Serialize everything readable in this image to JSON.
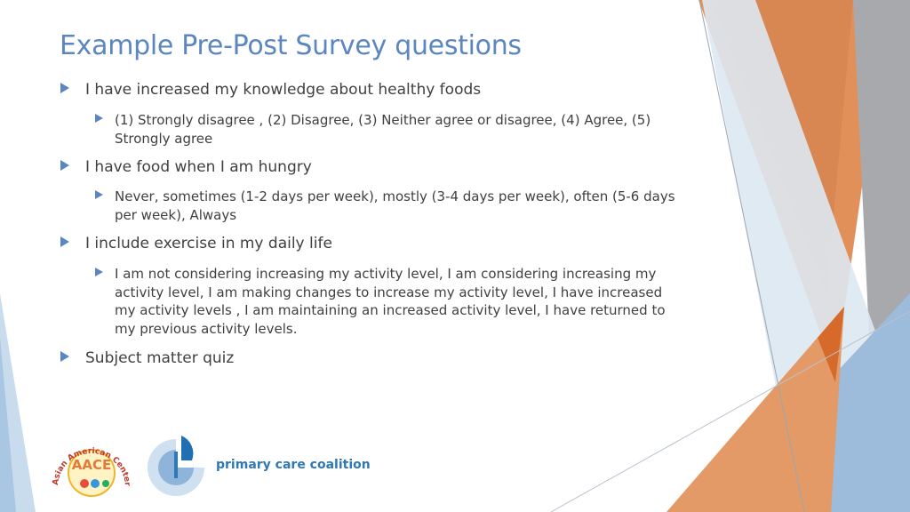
{
  "slide": {
    "title": "Example Pre-Post Survey questions",
    "bullets": [
      {
        "text": "I have increased my knowledge about healthy foods",
        "sub": "(1) Strongly disagree , (2) Disagree, (3) Neither agree or disagree, (4) Agree, (5) Strongly agree"
      },
      {
        "text": "I have food when I am hungry",
        "sub": "Never, sometimes (1-2 days per week), mostly (3-4 days per week), often (5-6 days per week), Always"
      },
      {
        "text": "I include exercise in my daily life",
        "sub": "I am not considering increasing my activity level, I am considering increasing my activity level, I am making changes to increase my activity level, I have increased my activity levels , I am maintaining an increased activity level, I have returned to my previous activity levels."
      },
      {
        "text": "Subject matter quiz"
      }
    ]
  },
  "logos": {
    "aace_arc_text": "Asian American Center of Excellence",
    "aace_center": "AACE",
    "pcc_text": "primary care coalition"
  },
  "colors": {
    "title": "#5b86c0",
    "body_text": "#404040",
    "accent_orange": "#e07b39",
    "accent_blue": "#8fb4d9"
  }
}
